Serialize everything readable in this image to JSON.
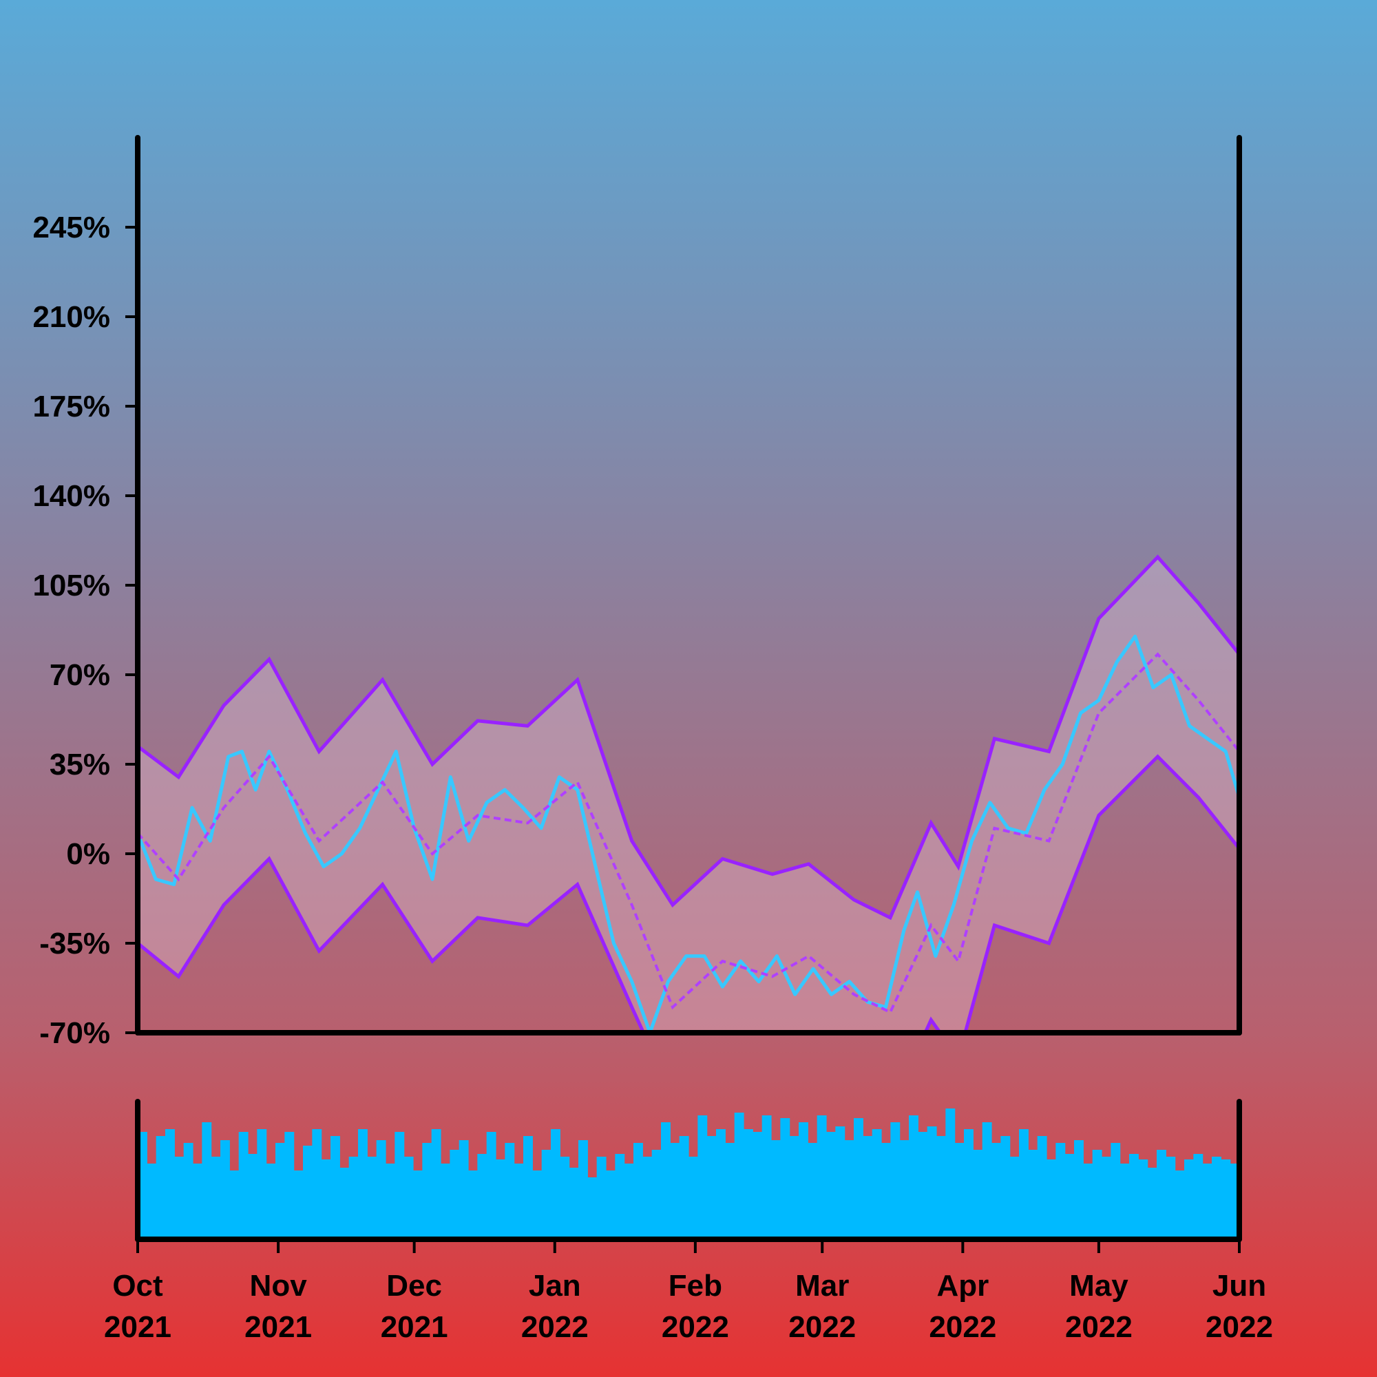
{
  "chart_data": [
    {
      "type": "line",
      "x_start": "2021-10-01",
      "x_end": "2022-06-01",
      "ylim": [
        -70,
        280
      ],
      "y_ticks": [
        -70,
        -35,
        0,
        35,
        70,
        105,
        140,
        175,
        210,
        245
      ],
      "y_tick_labels": [
        "-70%",
        "-35%",
        "0%",
        "35%",
        "70%",
        "105%",
        "140%",
        "175%",
        "210%",
        "245%"
      ],
      "x_ticks": [
        "2021-10-01",
        "2021-11-01",
        "2021-12-01",
        "2022-01-01",
        "2022-02-01",
        "2022-03-01",
        "2022-04-01",
        "2022-05-01",
        "2022-06-01"
      ],
      "x_tick_labels": [
        [
          "Oct",
          "2021"
        ],
        [
          "Nov",
          "2021"
        ],
        [
          "Dec",
          "2021"
        ],
        [
          "Jan",
          "2022"
        ],
        [
          "Feb",
          "2022"
        ],
        [
          "Mar",
          "2022"
        ],
        [
          "Apr",
          "2022"
        ],
        [
          "May",
          "2022"
        ],
        [
          "Jun",
          "2022"
        ]
      ],
      "series": [
        {
          "role": "price",
          "color": "#38c8ff",
          "points": [
            [
              "2021-10-01",
              8
            ],
            [
              "2021-10-05",
              -10
            ],
            [
              "2021-10-09",
              -12
            ],
            [
              "2021-10-13",
              18
            ],
            [
              "2021-10-17",
              5
            ],
            [
              "2021-10-21",
              38
            ],
            [
              "2021-10-24",
              40
            ],
            [
              "2021-10-27",
              25
            ],
            [
              "2021-10-30",
              40
            ],
            [
              "2021-11-03",
              25
            ],
            [
              "2021-11-07",
              8
            ],
            [
              "2021-11-11",
              -5
            ],
            [
              "2021-11-15",
              0
            ],
            [
              "2021-11-19",
              10
            ],
            [
              "2021-11-23",
              25
            ],
            [
              "2021-11-27",
              40
            ],
            [
              "2021-12-01",
              10
            ],
            [
              "2021-12-05",
              -10
            ],
            [
              "2021-12-09",
              30
            ],
            [
              "2021-12-13",
              5
            ],
            [
              "2021-12-17",
              20
            ],
            [
              "2021-12-21",
              25
            ],
            [
              "2021-12-25",
              18
            ],
            [
              "2021-12-29",
              10
            ],
            [
              "2022-01-02",
              30
            ],
            [
              "2022-01-06",
              25
            ],
            [
              "2022-01-10",
              -5
            ],
            [
              "2022-01-14",
              -35
            ],
            [
              "2022-01-18",
              -50
            ],
            [
              "2022-01-22",
              -70
            ],
            [
              "2022-01-26",
              -50
            ],
            [
              "2022-01-30",
              -40
            ],
            [
              "2022-02-03",
              -40
            ],
            [
              "2022-02-07",
              -52
            ],
            [
              "2022-02-11",
              -42
            ],
            [
              "2022-02-15",
              -50
            ],
            [
              "2022-02-19",
              -40
            ],
            [
              "2022-02-23",
              -55
            ],
            [
              "2022-02-27",
              -45
            ],
            [
              "2022-03-03",
              -55
            ],
            [
              "2022-03-07",
              -50
            ],
            [
              "2022-03-11",
              -58
            ],
            [
              "2022-03-15",
              -60
            ],
            [
              "2022-03-19",
              -30
            ],
            [
              "2022-03-22",
              -15
            ],
            [
              "2022-03-26",
              -40
            ],
            [
              "2022-03-30",
              -20
            ],
            [
              "2022-04-03",
              5
            ],
            [
              "2022-04-07",
              20
            ],
            [
              "2022-04-11",
              10
            ],
            [
              "2022-04-15",
              8
            ],
            [
              "2022-04-19",
              25
            ],
            [
              "2022-04-23",
              35
            ],
            [
              "2022-04-27",
              55
            ],
            [
              "2022-05-01",
              60
            ],
            [
              "2022-05-05",
              75
            ],
            [
              "2022-05-09",
              85
            ],
            [
              "2022-05-13",
              65
            ],
            [
              "2022-05-17",
              70
            ],
            [
              "2022-05-21",
              50
            ],
            [
              "2022-05-25",
              45
            ],
            [
              "2022-05-29",
              40
            ],
            [
              "2022-06-01",
              22
            ]
          ]
        },
        {
          "role": "moving-average",
          "color": "#b040ff",
          "points": [
            [
              "2021-10-01",
              8
            ],
            [
              "2021-10-10",
              -10
            ],
            [
              "2021-10-20",
              18
            ],
            [
              "2021-10-30",
              38
            ],
            [
              "2021-11-10",
              5
            ],
            [
              "2021-11-24",
              28
            ],
            [
              "2021-12-05",
              0
            ],
            [
              "2021-12-15",
              15
            ],
            [
              "2021-12-26",
              12
            ],
            [
              "2022-01-06",
              28
            ],
            [
              "2022-01-18",
              -20
            ],
            [
              "2022-01-27",
              -60
            ],
            [
              "2022-02-07",
              -42
            ],
            [
              "2022-02-18",
              -48
            ],
            [
              "2022-02-26",
              -40
            ],
            [
              "2022-03-08",
              -55
            ],
            [
              "2022-03-16",
              -62
            ],
            [
              "2022-03-25",
              -28
            ],
            [
              "2022-03-31",
              -42
            ],
            [
              "2022-04-08",
              10
            ],
            [
              "2022-04-20",
              5
            ],
            [
              "2022-05-01",
              55
            ],
            [
              "2022-05-14",
              78
            ],
            [
              "2022-05-23",
              60
            ],
            [
              "2022-06-01",
              40
            ]
          ]
        },
        {
          "role": "upper-band",
          "color": "#9922ff",
          "points": [
            [
              "2021-10-01",
              42
            ],
            [
              "2021-10-10",
              30
            ],
            [
              "2021-10-20",
              58
            ],
            [
              "2021-10-30",
              76
            ],
            [
              "2021-11-10",
              40
            ],
            [
              "2021-11-24",
              68
            ],
            [
              "2021-12-05",
              35
            ],
            [
              "2021-12-15",
              52
            ],
            [
              "2021-12-26",
              50
            ],
            [
              "2022-01-06",
              68
            ],
            [
              "2022-01-18",
              5
            ],
            [
              "2022-01-27",
              -20
            ],
            [
              "2022-02-07",
              -2
            ],
            [
              "2022-02-18",
              -8
            ],
            [
              "2022-02-26",
              -4
            ],
            [
              "2022-03-08",
              -18
            ],
            [
              "2022-03-16",
              -25
            ],
            [
              "2022-03-25",
              12
            ],
            [
              "2022-03-31",
              -5
            ],
            [
              "2022-04-08",
              45
            ],
            [
              "2022-04-20",
              40
            ],
            [
              "2022-05-01",
              92
            ],
            [
              "2022-05-14",
              116
            ],
            [
              "2022-05-23",
              98
            ],
            [
              "2022-06-01",
              78
            ]
          ]
        },
        {
          "role": "lower-band",
          "color": "#9922ff",
          "points": [
            [
              "2021-10-01",
              -35
            ],
            [
              "2021-10-10",
              -48
            ],
            [
              "2021-10-20",
              -20
            ],
            [
              "2021-10-30",
              -2
            ],
            [
              "2021-11-10",
              -38
            ],
            [
              "2021-11-24",
              -12
            ],
            [
              "2021-12-05",
              -42
            ],
            [
              "2021-12-15",
              -25
            ],
            [
              "2021-12-26",
              -28
            ],
            [
              "2022-01-06",
              -12
            ],
            [
              "2022-01-18",
              -60
            ],
            [
              "2022-01-27",
              -95
            ],
            [
              "2022-02-07",
              -80
            ],
            [
              "2022-02-18",
              -88
            ],
            [
              "2022-02-26",
              -80
            ],
            [
              "2022-03-08",
              -92
            ],
            [
              "2022-03-16",
              -100
            ],
            [
              "2022-03-25",
              -65
            ],
            [
              "2022-03-31",
              -80
            ],
            [
              "2022-04-08",
              -28
            ],
            [
              "2022-04-20",
              -35
            ],
            [
              "2022-05-01",
              15
            ],
            [
              "2022-05-14",
              38
            ],
            [
              "2022-05-23",
              22
            ],
            [
              "2022-06-01",
              2
            ]
          ]
        }
      ],
      "band_fill": "rgba(230,200,220,0.35)"
    },
    {
      "type": "bar",
      "role": "volume",
      "color": "#00baff",
      "x_start": "2021-10-01",
      "x_end": "2022-06-01",
      "ylim": [
        0,
        1
      ],
      "values": [
        0.78,
        0.55,
        0.75,
        0.8,
        0.6,
        0.7,
        0.55,
        0.85,
        0.6,
        0.72,
        0.5,
        0.78,
        0.62,
        0.8,
        0.55,
        0.7,
        0.78,
        0.5,
        0.68,
        0.8,
        0.58,
        0.75,
        0.52,
        0.6,
        0.8,
        0.6,
        0.72,
        0.55,
        0.78,
        0.6,
        0.5,
        0.7,
        0.8,
        0.55,
        0.65,
        0.72,
        0.5,
        0.62,
        0.78,
        0.58,
        0.7,
        0.55,
        0.75,
        0.5,
        0.65,
        0.8,
        0.6,
        0.52,
        0.72,
        0.45,
        0.6,
        0.5,
        0.62,
        0.55,
        0.7,
        0.6,
        0.65,
        0.85,
        0.7,
        0.75,
        0.6,
        0.9,
        0.75,
        0.8,
        0.7,
        0.92,
        0.8,
        0.78,
        0.9,
        0.72,
        0.88,
        0.75,
        0.85,
        0.7,
        0.9,
        0.78,
        0.82,
        0.72,
        0.88,
        0.75,
        0.8,
        0.7,
        0.85,
        0.72,
        0.9,
        0.78,
        0.82,
        0.75,
        0.95,
        0.7,
        0.8,
        0.65,
        0.85,
        0.7,
        0.75,
        0.6,
        0.8,
        0.65,
        0.75,
        0.58,
        0.7,
        0.62,
        0.72,
        0.55,
        0.65,
        0.6,
        0.7,
        0.55,
        0.62,
        0.58,
        0.52,
        0.65,
        0.6,
        0.5,
        0.58,
        0.62,
        0.55,
        0.6,
        0.58,
        0.55
      ]
    }
  ]
}
